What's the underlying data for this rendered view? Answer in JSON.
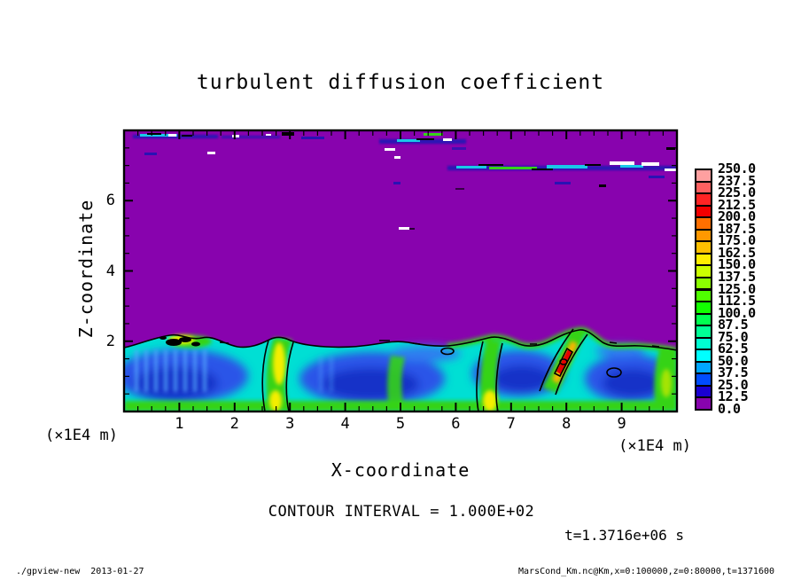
{
  "title": "turbulent diffusion coefficient",
  "axes": {
    "xlabel": "X-coordinate",
    "ylabel": "Z-coordinate",
    "x_unit_left": "(×1E4 m)",
    "x_unit_right": "(×1E4 m)",
    "x_tick_labels": [
      "1",
      "2",
      "3",
      "4",
      "5",
      "6",
      "7",
      "8",
      "9"
    ],
    "y_tick_labels": [
      "2",
      "4",
      "6"
    ]
  },
  "annotations": {
    "contour_interval": "CONTOUR INTERVAL = 1.000E+02",
    "time": "t=1.3716e+06 s"
  },
  "footer": {
    "left": "./gpview-new  2013-01-27",
    "right": "MarsCond_Km.nc@Km,x=0:100000,z=0:80000,t=1371600"
  },
  "colorbar": {
    "labels": [
      "250.0",
      "237.5",
      "225.0",
      "212.5",
      "200.0",
      "187.5",
      "175.0",
      "162.5",
      "150.0",
      "137.5",
      "125.0",
      "112.5",
      "100.0",
      "87.5",
      "75.0",
      "62.5",
      "50.0",
      "37.5",
      "25.0",
      "12.5",
      "0.0"
    ],
    "colors_top_to_bottom": [
      "#ffa0a0",
      "#ff6060",
      "#ff2424",
      "#f20000",
      "#ff6f00",
      "#ff9800",
      "#ffc100",
      "#ffee00",
      "#ccff00",
      "#8cff00",
      "#4fff00",
      "#12ff00",
      "#00ff50",
      "#00ff96",
      "#00ffd2",
      "#00ffff",
      "#00a6ff",
      "#004cff",
      "#1a00d2",
      "#8803ae"
    ]
  },
  "chart_data": {
    "type": "heatmap",
    "title": "turbulent diffusion coefficient",
    "xlabel": "X-coordinate",
    "ylabel": "Z-coordinate",
    "axis_units": "×1E4 m",
    "x_range": [
      0,
      10
    ],
    "z_range": [
      0,
      8
    ],
    "x_major_ticks": [
      1,
      2,
      3,
      4,
      5,
      6,
      7,
      8,
      9
    ],
    "x_minor_tick_step": 0.25,
    "y_major_ticks": [
      2,
      4,
      6
    ],
    "y_minor_tick_step": 0.5,
    "contour_interval": 100.0,
    "time_seconds": 1371600,
    "color_levels": [
      0.0,
      12.5,
      25.0,
      37.5,
      50.0,
      62.5,
      75.0,
      87.5,
      100.0,
      112.5,
      125.0,
      137.5,
      150.0,
      162.5,
      175.0,
      187.5,
      200.0,
      212.5,
      225.0,
      237.5,
      250.0
    ],
    "field_description": {
      "background": "uniform minimum band 0-12.5 (purple) filling most of the domain above z≈2×1E4 m",
      "boundary_layer": "turbulent convective layer below z≈2×1E4 m: blue vortex cells (values ≈25-75) rimmed by cyan (≈75-100), with rising green/yellow plumes (≈125-250) near x≈2.7, 4.9, 6.4 (tilted, with red core) and 9.7×1E4 m; green strip along the bottom boundary",
      "contour_line": "single black contour at 100 tracing the boundary-layer top and plume edges",
      "detached_streaks": "thin turbulent streaks with blue/cyan/green filaments and small white blank patches near z≈7.8 (x≈0-6×1E4 m) and z≈6.9 (x≈6-10×1E4 m)"
    },
    "legend_position": "right",
    "grid": false
  }
}
